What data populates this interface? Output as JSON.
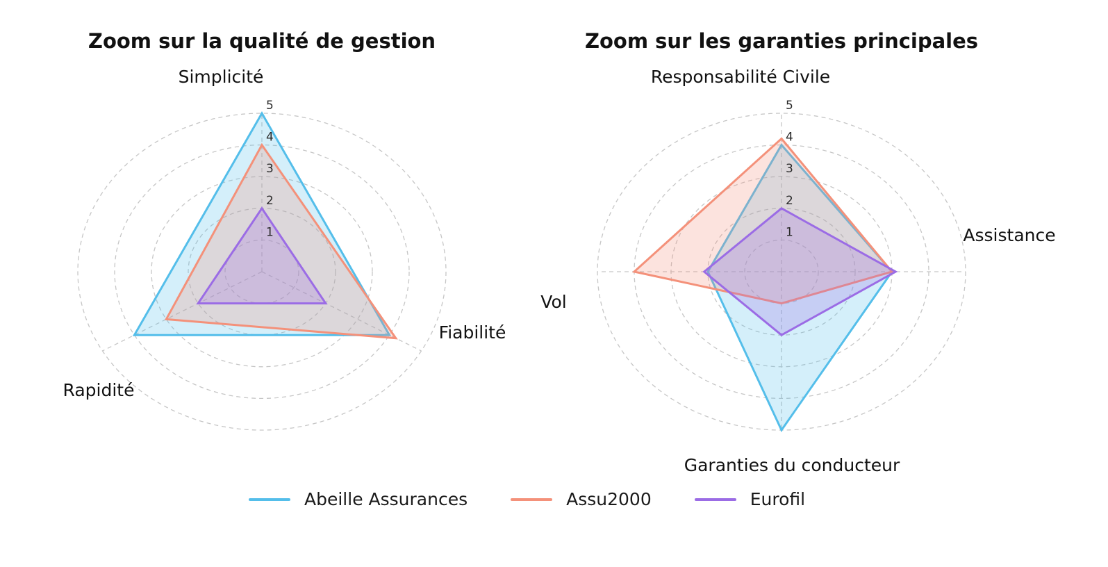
{
  "figure": {
    "background": "#ffffff",
    "grid_color": "#c6c6c6",
    "tick_color": "#2a2a2a",
    "label_color": "#111111"
  },
  "legend": {
    "position": "bottom-center",
    "items": [
      {
        "label": "Abeille Assurances",
        "color": "#54BEEA"
      },
      {
        "label": "Assu2000",
        "color": "#F4917A"
      },
      {
        "label": "Eurofil",
        "color": "#9B6CE5"
      }
    ]
  },
  "chart_data": [
    {
      "type": "radar",
      "title": "Zoom sur la qualité de gestion",
      "categories": [
        "Simplicité",
        "Fiabilité",
        "Rapidité"
      ],
      "ticks": [
        1,
        2,
        3,
        4,
        5
      ],
      "r_range": [
        0,
        5
      ],
      "grid": "dashed concentric circles with dashed spokes",
      "tick_label_axis": "top",
      "series": [
        {
          "name": "Abeille Assurances",
          "color": "#54BEEA",
          "values": [
            5,
            4,
            4
          ]
        },
        {
          "name": "Assu2000",
          "color": "#F4917A",
          "values": [
            4,
            4.2,
            3
          ]
        },
        {
          "name": "Eurofil",
          "color": "#9B6CE5",
          "values": [
            2,
            2,
            2
          ]
        }
      ]
    },
    {
      "type": "radar",
      "title": "Zoom sur les garanties principales",
      "categories": [
        "Responsabilité Civile",
        "Assistance",
        "Garanties du conducteur",
        "Vol"
      ],
      "ticks": [
        1,
        2,
        3,
        4,
        5
      ],
      "r_range": [
        0,
        5
      ],
      "grid": "dashed concentric circles with dashed spokes",
      "tick_label_axis": "top",
      "series": [
        {
          "name": "Abeille Assurances",
          "color": "#54BEEA",
          "values": [
            4,
            3,
            5,
            2
          ]
        },
        {
          "name": "Assu2000",
          "color": "#F4917A",
          "values": [
            4.2,
            3,
            1,
            4
          ]
        },
        {
          "name": "Eurofil",
          "color": "#9B6CE5",
          "values": [
            2,
            3.1,
            2,
            2.1
          ]
        }
      ]
    }
  ]
}
